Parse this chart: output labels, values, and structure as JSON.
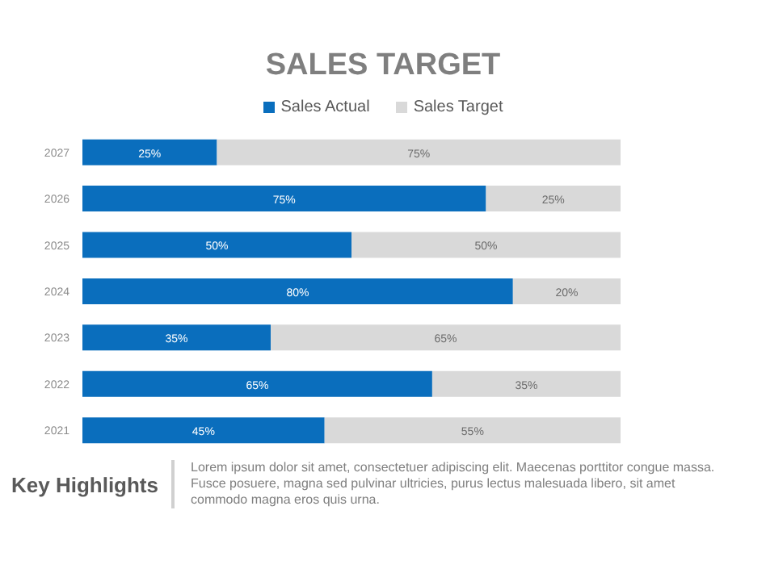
{
  "chart_data": {
    "type": "bar",
    "title": "SALES TARGET",
    "orientation": "horizontal",
    "stacked": true,
    "legend": "top",
    "categories": [
      "2027",
      "2026",
      "2025",
      "2024",
      "2023",
      "2022",
      "2021"
    ],
    "series": [
      {
        "name": "Sales Actual",
        "color": "#0a6ebd",
        "values": [
          25,
          75,
          50,
          80,
          35,
          65,
          45
        ],
        "value_labels": [
          "25%",
          "75%",
          "50%",
          "80%",
          "35%",
          "65%",
          "45%"
        ]
      },
      {
        "name": "Sales Target",
        "color": "#d9d9d9",
        "values": [
          75,
          25,
          50,
          20,
          65,
          35,
          55
        ],
        "value_labels": [
          "75%",
          "25%",
          "50%",
          "20%",
          "65%",
          "35%",
          "55%"
        ]
      }
    ],
    "annotations": [
      "Key Highlights",
      "Lorem ipsum dolor sit amet, consectetuer adipiscing elit. Maecenas porttitor congue massa. Fusce posuere, magna sed pulvinar ultricies, purus lectus malesuada libero, sit amet commodo magna eros quis urna."
    ]
  }
}
